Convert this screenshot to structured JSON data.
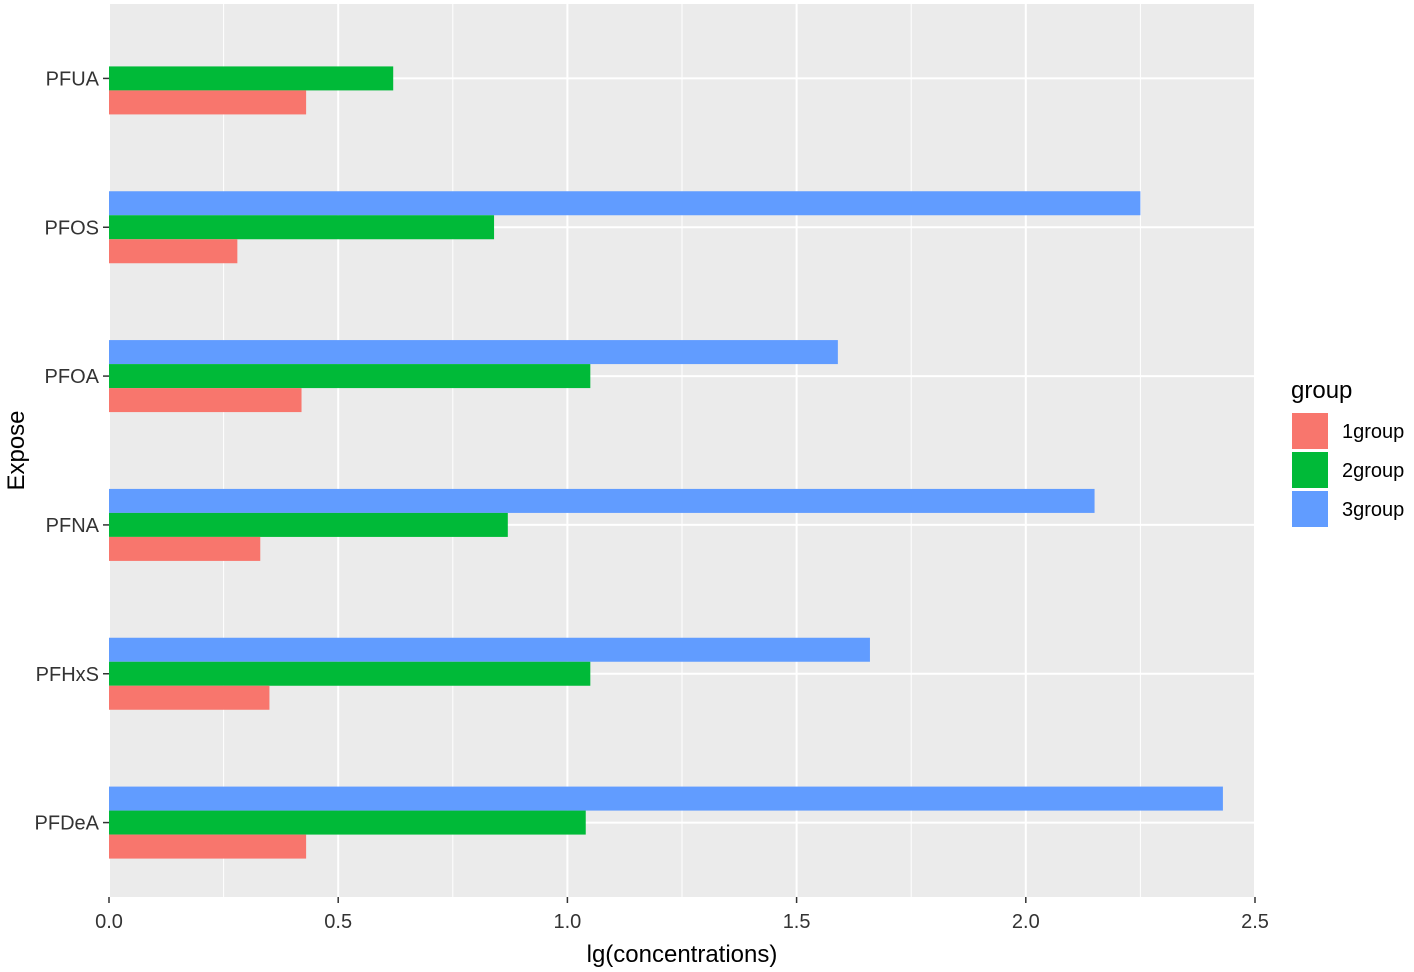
{
  "chart_data": {
    "type": "bar",
    "orientation": "horizontal",
    "xlabel": "lg(concentrations)",
    "ylabel": "Expose",
    "xlim": [
      0,
      2.5
    ],
    "x_ticks": [
      "0.0",
      "0.5",
      "1.0",
      "1.5",
      "2.0",
      "2.5"
    ],
    "categories": [
      "PFUA",
      "PFOS",
      "PFOA",
      "PFNA",
      "PFHxS",
      "PFDeA"
    ],
    "legend": {
      "title": "group",
      "placement": "right"
    },
    "series": [
      {
        "name": "1group",
        "color": "#F8766D",
        "values": [
          0.43,
          0.28,
          0.42,
          0.33,
          0.35,
          0.43
        ]
      },
      {
        "name": "2group",
        "color": "#00BA38",
        "values": [
          0.62,
          0.84,
          1.05,
          0.87,
          1.05,
          1.04
        ]
      },
      {
        "name": "3group",
        "color": "#619CFF",
        "values": [
          null,
          2.25,
          1.59,
          2.15,
          1.66,
          2.43
        ]
      }
    ],
    "panel_background": "#EBEBEB",
    "grid": true
  }
}
